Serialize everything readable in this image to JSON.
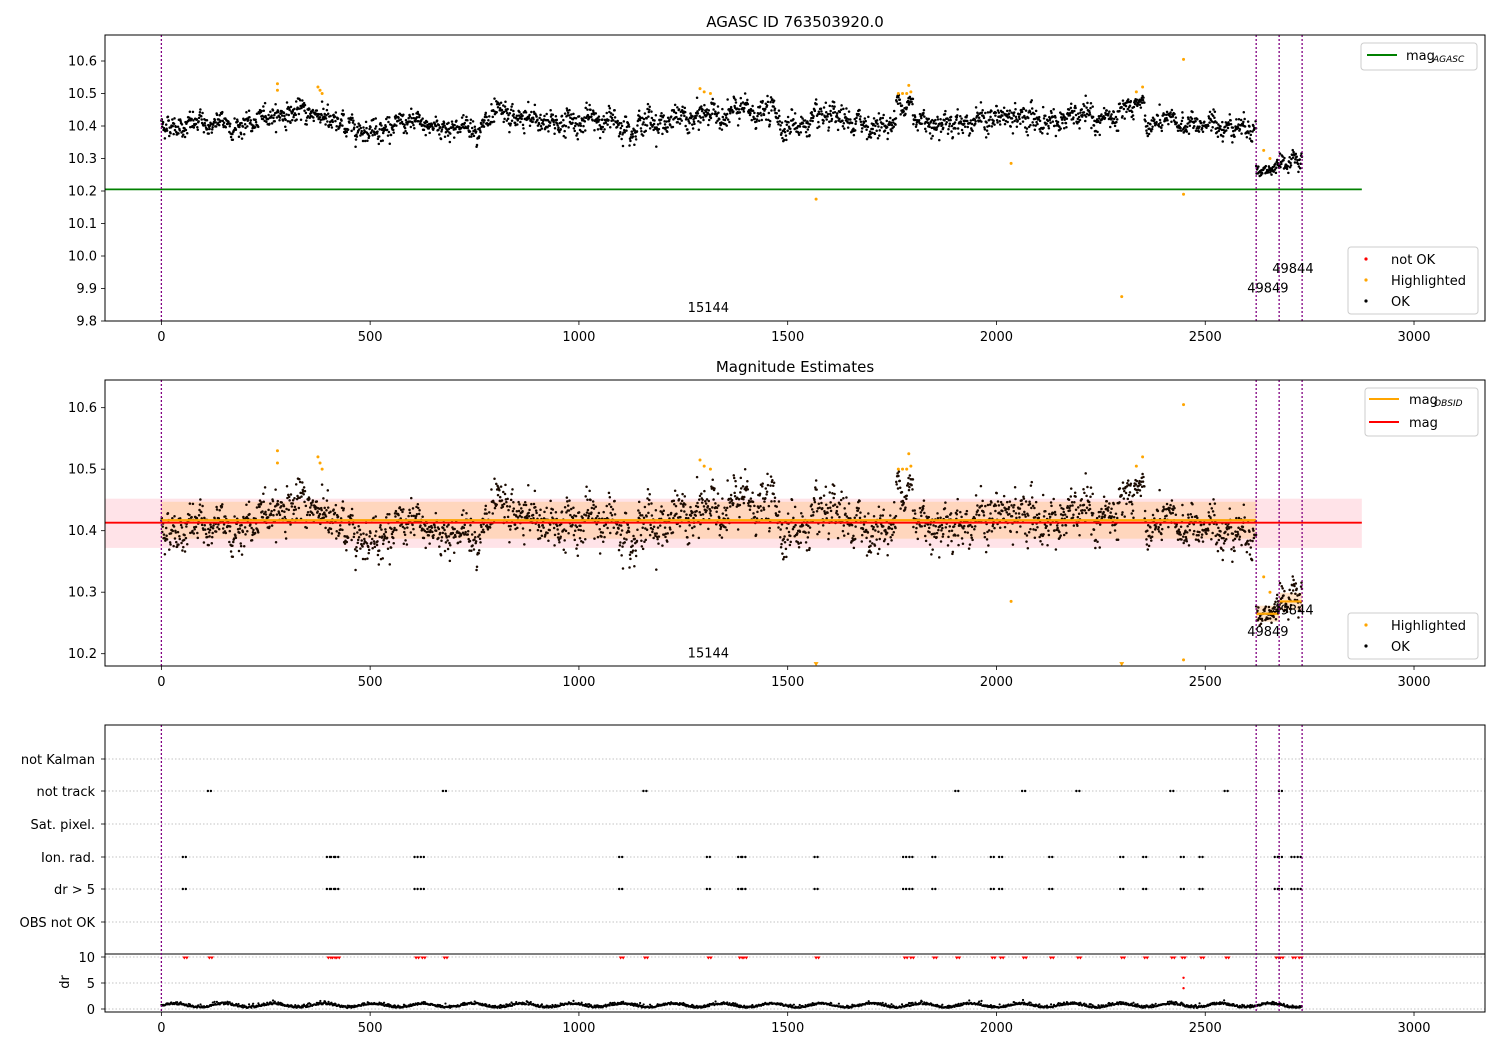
{
  "chart_data": [
    {
      "type": "scatter",
      "title": "AGASC ID 763503920.0",
      "xlim": [
        -135,
        3170
      ],
      "ylim": [
        9.8,
        10.68
      ],
      "xticks": [
        0,
        500,
        1000,
        1500,
        2000,
        2500,
        3000
      ],
      "yticks": [
        9.8,
        9.9,
        10.0,
        10.1,
        10.2,
        10.3,
        10.4,
        10.5,
        10.6
      ],
      "ytick_labels": [
        "9.8",
        "9.9",
        "10.0",
        "10.1",
        "10.2",
        "10.3",
        "10.4",
        "10.5",
        "10.6"
      ],
      "mag_agasc": 10.205,
      "mag_agasc_x_range": [
        -135,
        2875
      ],
      "obsid_boundaries": [
        0,
        2622,
        2677,
        2732
      ],
      "obsid_labels": [
        {
          "text": "15144",
          "x": 1310,
          "y": 9.84
        },
        {
          "text": "49849",
          "x": 2650,
          "y": 9.9
        },
        {
          "text": "49844",
          "x": 2710,
          "y": 9.96
        }
      ],
      "highlighted_points": [
        {
          "x": 278,
          "y": 10.53
        },
        {
          "x": 278,
          "y": 10.51
        },
        {
          "x": 375,
          "y": 10.52
        },
        {
          "x": 380,
          "y": 10.51
        },
        {
          "x": 385,
          "y": 10.5
        },
        {
          "x": 1290,
          "y": 10.515
        },
        {
          "x": 1300,
          "y": 10.505
        },
        {
          "x": 1315,
          "y": 10.5
        },
        {
          "x": 1568,
          "y": 10.175
        },
        {
          "x": 1765,
          "y": 10.5
        },
        {
          "x": 1775,
          "y": 10.5
        },
        {
          "x": 1785,
          "y": 10.5
        },
        {
          "x": 1790,
          "y": 10.525
        },
        {
          "x": 1795,
          "y": 10.505
        },
        {
          "x": 2035,
          "y": 10.285
        },
        {
          "x": 2300,
          "y": 9.875
        },
        {
          "x": 2335,
          "y": 10.505
        },
        {
          "x": 2350,
          "y": 10.52
        },
        {
          "x": 2448,
          "y": 10.605
        },
        {
          "x": 2448,
          "y": 10.19
        },
        {
          "x": 2640,
          "y": 10.325
        },
        {
          "x": 2655,
          "y": 10.3
        }
      ],
      "ok_segments": [
        {
          "x": [
            0,
            240
          ],
          "center": 10.405,
          "spread": 0.05
        },
        {
          "x": [
            240,
            400
          ],
          "center": 10.44,
          "spread": 0.05
        },
        {
          "x": [
            400,
            780
          ],
          "center": 10.4,
          "spread": 0.05
        },
        {
          "x": [
            780,
            1290
          ],
          "center": 10.415,
          "spread": 0.06
        },
        {
          "x": [
            1290,
            1480
          ],
          "center": 10.44,
          "spread": 0.06
        },
        {
          "x": [
            1480,
            1760
          ],
          "center": 10.405,
          "spread": 0.06
        },
        {
          "x": [
            1760,
            1800
          ],
          "center": 10.475,
          "spread": 0.04
        },
        {
          "x": [
            1800,
            2330
          ],
          "center": 10.42,
          "spread": 0.06
        },
        {
          "x": [
            2330,
            2355
          ],
          "center": 10.475,
          "spread": 0.03
        },
        {
          "x": [
            2355,
            2622
          ],
          "center": 10.405,
          "spread": 0.05
        },
        {
          "x": [
            2622,
            2677
          ],
          "center": 10.265,
          "spread": 0.03
        },
        {
          "x": [
            2677,
            2732
          ],
          "center": 10.285,
          "spread": 0.04
        }
      ],
      "legend": {
        "placement": "lower right",
        "items": [
          "not OK",
          "Highlighted",
          "OK"
        ]
      },
      "upper_legend": {
        "placement": "upper right",
        "label_main": "mag",
        "label_sub": "AGASC"
      },
      "colors": {
        "ok": "#000000",
        "highlighted": "#ffa500",
        "not_ok": "#ff0000",
        "mag_agasc": "#008000",
        "obsid_line": "#800080"
      }
    },
    {
      "type": "scatter",
      "title": "Magnitude Estimates",
      "xlim": [
        -135,
        3170
      ],
      "ylim": [
        10.18,
        10.645
      ],
      "xticks": [
        0,
        500,
        1000,
        1500,
        2000,
        2500,
        3000
      ],
      "yticks": [
        10.2,
        10.3,
        10.4,
        10.5,
        10.6
      ],
      "ytick_labels": [
        "10.2",
        "10.3",
        "10.4",
        "10.5",
        "10.6"
      ],
      "mag": 10.413,
      "mag_band": [
        10.372,
        10.452
      ],
      "mag_x_range": [
        -135,
        2875
      ],
      "mag_obsid": [
        {
          "x": [
            0,
            2622
          ],
          "value": 10.417,
          "band": [
            10.387,
            10.447
          ]
        },
        {
          "x": [
            2622,
            2677
          ],
          "value": 10.265,
          "band": [
            10.252,
            10.278
          ]
        },
        {
          "x": [
            2677,
            2732
          ],
          "value": 10.285,
          "band": [
            10.271,
            10.299
          ]
        }
      ],
      "obsid_boundaries": [
        0,
        2622,
        2677,
        2732
      ],
      "obsid_labels": [
        {
          "text": "15144",
          "x": 1310,
          "y": 10.2
        },
        {
          "text": "49849",
          "x": 2650,
          "y": 10.235
        },
        {
          "text": "49844",
          "x": 2710,
          "y": 10.27
        }
      ],
      "legend": {
        "placement": "lower right",
        "items": [
          "Highlighted",
          "OK"
        ]
      },
      "upper_legend": {
        "placement": "upper right",
        "label_obsid_main": "mag",
        "label_obsid_sub": "OBSID",
        "label_mag": "mag"
      },
      "colors": {
        "mag_obsid": "#ffa500",
        "mag": "#ff0000",
        "band_mag": "#ffc0cb",
        "band_obsid": "#ffcc99"
      }
    },
    {
      "type": "scatter",
      "xlim": [
        -135,
        3170
      ],
      "xticks": [
        0,
        500,
        1000,
        1500,
        2000,
        2500,
        3000
      ],
      "flag_rows": [
        "not Kalman",
        "not track",
        "Sat. pixel.",
        "Ion. rad.",
        "dr > 5",
        "OBS not OK"
      ],
      "flag_points": {
        "not track": [
          115,
          678,
          1158,
          1905,
          2065,
          2195,
          2420,
          2550,
          2680
        ],
        "Ion. rad.": [
          55,
          400,
          410,
          420,
          610,
          625,
          1100,
          1310,
          1385,
          1395,
          1568,
          1780,
          1795,
          1850,
          1990,
          2010,
          2130,
          2300,
          2355,
          2445,
          2490,
          2670,
          2680,
          2710,
          2725
        ],
        "dr > 5": [
          55,
          400,
          410,
          420,
          610,
          625,
          1100,
          1310,
          1385,
          1395,
          1568,
          1780,
          1795,
          1850,
          1990,
          2010,
          2130,
          2300,
          2355,
          2445,
          2490,
          2670,
          2680,
          2710,
          2725
        ]
      },
      "dr_ylim": [
        -1,
        11.5
      ],
      "dr_yticks": [
        0,
        5,
        10
      ],
      "dr_ylabel": "dr",
      "dr_clipped_x": [
        55,
        115,
        400,
        410,
        420,
        610,
        625,
        678,
        1100,
        1158,
        1310,
        1385,
        1395,
        1568,
        1780,
        1795,
        1850,
        1905,
        1990,
        2010,
        2065,
        2130,
        2195,
        2300,
        2355,
        2420,
        2445,
        2490,
        2550,
        2670,
        2680,
        2710,
        2725
      ],
      "dr_spikes": [
        {
          "x": 2448,
          "y": 6
        },
        {
          "x": 2448,
          "y": 4
        }
      ],
      "obsid_boundaries": [
        0,
        2622,
        2677,
        2732
      ]
    }
  ]
}
